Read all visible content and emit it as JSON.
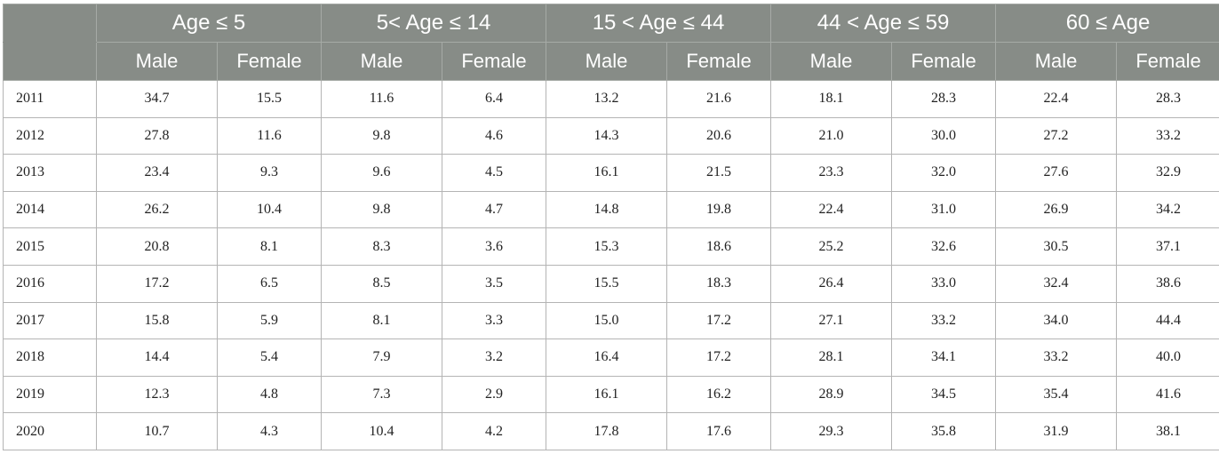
{
  "table": {
    "group_headers": [
      "Age ≤ 5",
      "5< Age ≤ 14",
      "15 < Age ≤ 44",
      "44 < Age ≤ 59",
      "60 ≤ Age"
    ],
    "sub_headers": [
      "Male",
      "Female"
    ],
    "rows": [
      {
        "year": "2011",
        "values": [
          "34.7",
          "15.5",
          "11.6",
          "6.4",
          "13.2",
          "21.6",
          "18.1",
          "28.3",
          "22.4",
          "28.3"
        ]
      },
      {
        "year": "2012",
        "values": [
          "27.8",
          "11.6",
          "9.8",
          "4.6",
          "14.3",
          "20.6",
          "21.0",
          "30.0",
          "27.2",
          "33.2"
        ]
      },
      {
        "year": "2013",
        "values": [
          "23.4",
          "9.3",
          "9.6",
          "4.5",
          "16.1",
          "21.5",
          "23.3",
          "32.0",
          "27.6",
          "32.9"
        ]
      },
      {
        "year": "2014",
        "values": [
          "26.2",
          "10.4",
          "9.8",
          "4.7",
          "14.8",
          "19.8",
          "22.4",
          "31.0",
          "26.9",
          "34.2"
        ]
      },
      {
        "year": "2015",
        "values": [
          "20.8",
          "8.1",
          "8.3",
          "3.6",
          "15.3",
          "18.6",
          "25.2",
          "32.6",
          "30.5",
          "37.1"
        ]
      },
      {
        "year": "2016",
        "values": [
          "17.2",
          "6.5",
          "8.5",
          "3.5",
          "15.5",
          "18.3",
          "26.4",
          "33.0",
          "32.4",
          "38.6"
        ]
      },
      {
        "year": "2017",
        "values": [
          "15.8",
          "5.9",
          "8.1",
          "3.3",
          "15.0",
          "17.2",
          "27.1",
          "33.2",
          "34.0",
          "44.4"
        ]
      },
      {
        "year": "2018",
        "values": [
          "14.4",
          "5.4",
          "7.9",
          "3.2",
          "16.4",
          "17.2",
          "28.1",
          "34.1",
          "33.2",
          "40.0"
        ]
      },
      {
        "year": "2019",
        "values": [
          "12.3",
          "4.8",
          "7.3",
          "2.9",
          "16.1",
          "16.2",
          "28.9",
          "34.5",
          "35.4",
          "41.6"
        ]
      },
      {
        "year": "2020",
        "values": [
          "10.7",
          "4.3",
          "10.4",
          "4.2",
          "17.8",
          "17.6",
          "29.3",
          "35.8",
          "31.9",
          "38.1"
        ]
      }
    ]
  }
}
